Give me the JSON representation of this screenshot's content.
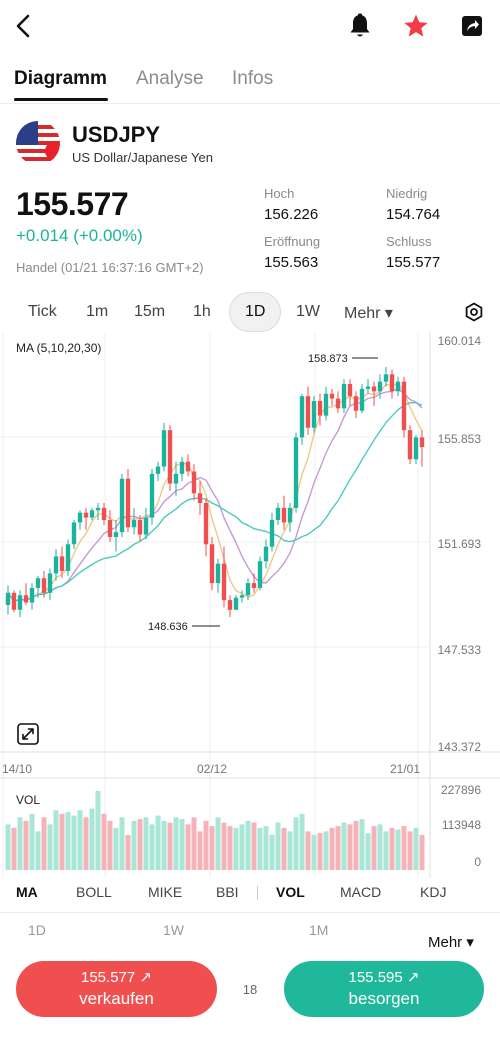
{
  "tabs": [
    "Diagramm",
    "Analyse",
    "Infos"
  ],
  "instrument": {
    "symbol": "USDJPY",
    "description": "US Dollar/Japanese Yen",
    "price": "155.577",
    "change": "+0.014 (+0.00%)",
    "trade_time": "Handel (01/21 16:37:16 GMT+2)"
  },
  "stats": {
    "high_label": "Hoch",
    "high": "156.226",
    "low_label": "Niedrig",
    "low": "154.764",
    "open_label": "Eröffnung",
    "open": "155.563",
    "close_label": "Schluss",
    "close": "155.577"
  },
  "timeframes": [
    "Tick",
    "1m",
    "15m",
    "1h",
    "1D",
    "1W"
  ],
  "timeframe_active": "1D",
  "timeframe_more": "Mehr ▾",
  "icons": {
    "back": "back-arrow-icon",
    "alert": "bell-icon",
    "watchlist": "star-icon",
    "share": "share-icon",
    "settings": "settings-icon",
    "expand": "expand-icon"
  },
  "colors": {
    "up": "#1cb39c",
    "down": "#f04f4f",
    "ma5": "#f2c68c",
    "ma10": "#c69ad8",
    "ma20": "#4ec9c0"
  },
  "chart_data": {
    "type": "candlestick",
    "ma_label": "MA (5,10,20,30)",
    "price_axis": [
      "160.014",
      "155.853",
      "151.693",
      "147.533",
      "143.372"
    ],
    "ylim": [
      143.372,
      160.014
    ],
    "x_labels": [
      "14/10",
      "02/12",
      "21/01"
    ],
    "high_annotation": "158.873",
    "low_annotation": "148.636",
    "candles": [
      [
        149.1,
        149.9,
        148.7,
        149.6
      ],
      [
        149.6,
        149.7,
        148.8,
        148.9
      ],
      [
        148.9,
        149.7,
        148.6,
        149.5
      ],
      [
        149.5,
        150.0,
        149.1,
        149.2
      ],
      [
        149.2,
        150.0,
        148.9,
        149.8
      ],
      [
        149.8,
        150.3,
        149.4,
        150.2
      ],
      [
        150.2,
        150.5,
        149.4,
        149.6
      ],
      [
        149.6,
        150.6,
        149.3,
        150.4
      ],
      [
        150.4,
        151.4,
        150.1,
        151.1
      ],
      [
        151.1,
        151.5,
        150.2,
        150.5
      ],
      [
        150.5,
        151.8,
        150.3,
        151.6
      ],
      [
        151.6,
        152.6,
        151.4,
        152.5
      ],
      [
        152.5,
        153.0,
        152.2,
        152.9
      ],
      [
        152.9,
        153.1,
        152.2,
        152.7
      ],
      [
        152.7,
        153.1,
        152.6,
        153.0
      ],
      [
        153.0,
        153.3,
        152.6,
        153.1
      ],
      [
        153.1,
        153.3,
        152.4,
        152.6
      ],
      [
        152.6,
        153.0,
        151.7,
        151.9
      ],
      [
        151.9,
        152.6,
        151.3,
        152.1
      ],
      [
        152.1,
        154.5,
        151.9,
        154.3
      ],
      [
        154.3,
        154.7,
        152.1,
        152.3
      ],
      [
        152.3,
        153.1,
        152.0,
        152.6
      ],
      [
        152.6,
        152.8,
        151.7,
        152.0
      ],
      [
        152.0,
        153.1,
        151.8,
        152.7
      ],
      [
        152.7,
        154.7,
        152.4,
        154.5
      ],
      [
        154.5,
        155.0,
        154.2,
        154.8
      ],
      [
        154.8,
        156.6,
        154.6,
        156.3
      ],
      [
        156.3,
        156.5,
        153.8,
        154.1
      ],
      [
        154.1,
        155.0,
        153.6,
        154.5
      ],
      [
        154.5,
        155.2,
        154.2,
        155.0
      ],
      [
        155.0,
        155.3,
        154.4,
        154.6
      ],
      [
        154.6,
        154.9,
        153.4,
        153.7
      ],
      [
        153.7,
        154.2,
        152.8,
        153.3
      ],
      [
        153.3,
        153.5,
        151.1,
        151.6
      ],
      [
        151.6,
        151.9,
        149.7,
        150.0
      ],
      [
        150.0,
        151.0,
        149.6,
        150.8
      ],
      [
        150.8,
        151.5,
        149.0,
        149.3
      ],
      [
        149.3,
        149.5,
        148.6,
        148.9
      ],
      [
        148.9,
        149.5,
        148.9,
        149.4
      ],
      [
        149.4,
        149.7,
        149.2,
        149.5
      ],
      [
        149.5,
        150.2,
        149.3,
        150.0
      ],
      [
        150.0,
        150.4,
        149.6,
        149.8
      ],
      [
        149.8,
        151.1,
        149.7,
        150.9
      ],
      [
        150.9,
        151.8,
        150.6,
        151.5
      ],
      [
        151.5,
        152.9,
        151.3,
        152.6
      ],
      [
        152.6,
        153.3,
        152.4,
        153.1
      ],
      [
        153.1,
        153.6,
        152.2,
        152.5
      ],
      [
        152.5,
        153.3,
        152.1,
        153.1
      ],
      [
        153.1,
        156.2,
        152.9,
        156.0
      ],
      [
        156.0,
        157.8,
        155.7,
        157.7
      ],
      [
        157.7,
        158.1,
        156.1,
        156.4
      ],
      [
        156.4,
        157.7,
        156.2,
        157.5
      ],
      [
        157.5,
        157.8,
        156.5,
        156.9
      ],
      [
        156.9,
        158.1,
        156.7,
        157.8
      ],
      [
        157.8,
        158.0,
        157.3,
        157.6
      ],
      [
        157.6,
        157.9,
        157.0,
        157.2
      ],
      [
        157.2,
        158.4,
        157.0,
        158.2
      ],
      [
        158.2,
        158.4,
        157.3,
        157.7
      ],
      [
        157.7,
        157.9,
        156.8,
        157.1
      ],
      [
        157.1,
        158.2,
        157.0,
        158.0
      ],
      [
        158.0,
        158.4,
        157.8,
        158.1
      ],
      [
        158.1,
        158.3,
        157.3,
        157.9
      ],
      [
        157.9,
        158.6,
        157.6,
        158.3
      ],
      [
        158.3,
        158.9,
        158.1,
        158.6
      ],
      [
        158.6,
        158.8,
        157.6,
        157.9
      ],
      [
        157.9,
        158.5,
        157.7,
        158.3
      ],
      [
        158.3,
        158.5,
        156.0,
        156.3
      ],
      [
        156.3,
        156.5,
        154.9,
        155.1
      ],
      [
        155.1,
        156.1,
        154.9,
        156.0
      ],
      [
        156.0,
        156.3,
        154.8,
        155.6
      ]
    ],
    "volume_label": "VOL",
    "volume_axis": [
      "227896",
      "113948",
      "0"
    ],
    "volume_max": 227896,
    "volumes": [
      130000,
      120000,
      150000,
      140000,
      160000,
      110000,
      150000,
      130000,
      170000,
      160000,
      165000,
      155000,
      170000,
      150000,
      175000,
      225000,
      160000,
      140000,
      120000,
      150000,
      100000,
      140000,
      145000,
      150000,
      130000,
      155000,
      140000,
      135000,
      150000,
      145000,
      130000,
      150000,
      110000,
      140000,
      125000,
      150000,
      135000,
      125000,
      120000,
      130000,
      140000,
      135000,
      120000,
      125000,
      100000,
      135000,
      120000,
      110000,
      150000,
      160000,
      110000,
      100000,
      105000,
      110000,
      120000,
      125000,
      135000,
      130000,
      140000,
      145000,
      105000,
      125000,
      130000,
      110000,
      120000,
      115000,
      125000,
      110000,
      120000,
      100000
    ]
  },
  "indicators": [
    "MA",
    "BOLL",
    "MIKE",
    "BBI",
    "VOL",
    "MACD",
    "KDJ"
  ],
  "ranges": [
    "1D",
    "1W",
    "1M"
  ],
  "range_more": "Mehr ▾",
  "sell": {
    "price": "155.577",
    "label": "verkaufen"
  },
  "buy": {
    "price": "155.595",
    "label": "besorgen"
  },
  "spread": "18"
}
